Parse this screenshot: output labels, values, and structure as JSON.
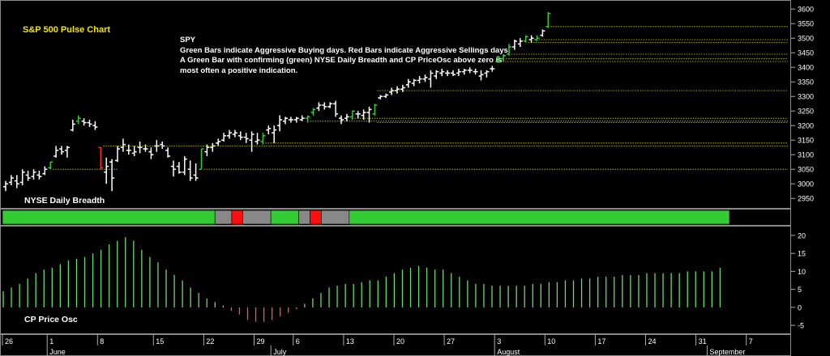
{
  "chart_data": [
    {
      "type": "ohlc",
      "title": "S&P 500 Pulse Chart",
      "symbol": "SPY",
      "description": [
        "Green Bars indicate Aggressive Buying days. Red Bars indicate Aggressive Sellings days.",
        "A Green Bar with confirming (green) NYSE Daily Breadth and CP PriceOsc above zero is",
        "most often a positive indication."
      ],
      "yticks": [
        2950,
        3000,
        3050,
        3100,
        3150,
        3200,
        3250,
        3300,
        3350,
        3400,
        3450,
        3500,
        3550,
        3600
      ],
      "ylim": [
        2920,
        3620
      ],
      "colors": {
        "up": "#33cc33",
        "down": "#ff2a2a",
        "neutral": "#ffffff",
        "grid": "#d6d600"
      },
      "bars": [
        {
          "o": 2990,
          "h": 3010,
          "l": 2975,
          "c": 3000,
          "t": "n"
        },
        {
          "o": 3005,
          "h": 3030,
          "l": 2995,
          "c": 3020,
          "t": "n"
        },
        {
          "o": 3010,
          "h": 3030,
          "l": 2985,
          "c": 3000,
          "t": "n"
        },
        {
          "o": 3005,
          "h": 3050,
          "l": 2995,
          "c": 3040,
          "t": "n"
        },
        {
          "o": 3030,
          "h": 3045,
          "l": 3010,
          "c": 3020,
          "t": "n"
        },
        {
          "o": 3025,
          "h": 3050,
          "l": 3015,
          "c": 3040,
          "t": "n"
        },
        {
          "o": 3030,
          "h": 3045,
          "l": 3015,
          "c": 3025,
          "t": "n"
        },
        {
          "o": 3035,
          "h": 3060,
          "l": 3030,
          "c": 3050,
          "t": "n"
        },
        {
          "o": 3055,
          "h": 3075,
          "l": 3050,
          "c": 3075,
          "t": "g"
        },
        {
          "o": 3095,
          "h": 3130,
          "l": 3090,
          "c": 3115,
          "t": "n"
        },
        {
          "o": 3120,
          "h": 3130,
          "l": 3100,
          "c": 3110,
          "t": "n"
        },
        {
          "o": 3115,
          "h": 3130,
          "l": 3090,
          "c": 3125,
          "t": "n"
        },
        {
          "o": 3185,
          "h": 3220,
          "l": 3180,
          "c": 3205,
          "t": "n"
        },
        {
          "o": 3215,
          "h": 3235,
          "l": 3205,
          "c": 3225,
          "t": "g"
        },
        {
          "o": 3215,
          "h": 3225,
          "l": 3200,
          "c": 3210,
          "t": "n"
        },
        {
          "o": 3210,
          "h": 3220,
          "l": 3195,
          "c": 3205,
          "t": "n"
        },
        {
          "o": 3200,
          "h": 3215,
          "l": 3185,
          "c": 3195,
          "t": "n"
        },
        {
          "o": 3125,
          "h": 3125,
          "l": 3050,
          "c": 3055,
          "t": "r"
        },
        {
          "o": 3040,
          "h": 3090,
          "l": 3000,
          "c": 3060,
          "t": "n"
        },
        {
          "o": 3075,
          "h": 3085,
          "l": 2975,
          "c": 3020,
          "t": "n"
        },
        {
          "o": 3080,
          "h": 3130,
          "l": 3075,
          "c": 3120,
          "t": "n"
        },
        {
          "o": 3125,
          "h": 3155,
          "l": 3110,
          "c": 3135,
          "t": "n"
        },
        {
          "o": 3115,
          "h": 3135,
          "l": 3100,
          "c": 3115,
          "t": "n"
        },
        {
          "o": 3105,
          "h": 3130,
          "l": 3095,
          "c": 3110,
          "t": "n"
        },
        {
          "o": 3125,
          "h": 3145,
          "l": 3105,
          "c": 3125,
          "t": "n"
        },
        {
          "o": 3120,
          "h": 3135,
          "l": 3110,
          "c": 3120,
          "t": "n"
        },
        {
          "o": 3110,
          "h": 3125,
          "l": 3085,
          "c": 3100,
          "t": "n"
        },
        {
          "o": 3130,
          "h": 3150,
          "l": 3110,
          "c": 3130,
          "t": "n"
        },
        {
          "o": 3135,
          "h": 3145,
          "l": 3120,
          "c": 3130,
          "t": "n"
        },
        {
          "o": 3115,
          "h": 3125,
          "l": 3090,
          "c": 3095,
          "t": "n"
        },
        {
          "o": 3060,
          "h": 3080,
          "l": 3025,
          "c": 3050,
          "t": "n"
        },
        {
          "o": 3060,
          "h": 3075,
          "l": 3035,
          "c": 3040,
          "t": "n"
        },
        {
          "o": 3040,
          "h": 3095,
          "l": 3030,
          "c": 3085,
          "t": "n"
        },
        {
          "o": 3050,
          "h": 3080,
          "l": 3010,
          "c": 3020,
          "t": "n"
        },
        {
          "o": 3030,
          "h": 3070,
          "l": 3010,
          "c": 3020,
          "t": "n"
        },
        {
          "o": 3050,
          "h": 3120,
          "l": 3050,
          "c": 3120,
          "t": "g"
        },
        {
          "o": 3110,
          "h": 3135,
          "l": 3095,
          "c": 3125,
          "t": "n"
        },
        {
          "o": 3125,
          "h": 3140,
          "l": 3110,
          "c": 3130,
          "t": "n"
        },
        {
          "o": 3140,
          "h": 3155,
          "l": 3130,
          "c": 3145,
          "t": "n"
        },
        {
          "o": 3150,
          "h": 3175,
          "l": 3145,
          "c": 3165,
          "t": "n"
        },
        {
          "o": 3165,
          "h": 3185,
          "l": 3155,
          "c": 3175,
          "t": "n"
        },
        {
          "o": 3170,
          "h": 3185,
          "l": 3160,
          "c": 3175,
          "t": "n"
        },
        {
          "o": 3165,
          "h": 3180,
          "l": 3150,
          "c": 3160,
          "t": "n"
        },
        {
          "o": 3160,
          "h": 3175,
          "l": 3140,
          "c": 3155,
          "t": "n"
        },
        {
          "o": 3150,
          "h": 3180,
          "l": 3110,
          "c": 3170,
          "t": "n"
        },
        {
          "o": 3145,
          "h": 3175,
          "l": 3135,
          "c": 3150,
          "t": "n"
        },
        {
          "o": 3145,
          "h": 3175,
          "l": 3135,
          "c": 3165,
          "t": "g"
        },
        {
          "o": 3185,
          "h": 3200,
          "l": 3170,
          "c": 3190,
          "t": "n"
        },
        {
          "o": 3175,
          "h": 3200,
          "l": 3140,
          "c": 3185,
          "t": "n"
        },
        {
          "o": 3200,
          "h": 3235,
          "l": 3180,
          "c": 3220,
          "t": "n"
        },
        {
          "o": 3215,
          "h": 3230,
          "l": 3205,
          "c": 3225,
          "t": "n"
        },
        {
          "o": 3220,
          "h": 3230,
          "l": 3210,
          "c": 3220,
          "t": "n"
        },
        {
          "o": 3220,
          "h": 3230,
          "l": 3210,
          "c": 3225,
          "t": "n"
        },
        {
          "o": 3220,
          "h": 3235,
          "l": 3215,
          "c": 3225,
          "t": "n"
        },
        {
          "o": 3225,
          "h": 3235,
          "l": 3210,
          "c": 3230,
          "t": "g"
        },
        {
          "o": 3245,
          "h": 3260,
          "l": 3235,
          "c": 3255,
          "t": "g"
        },
        {
          "o": 3260,
          "h": 3280,
          "l": 3250,
          "c": 3270,
          "t": "n"
        },
        {
          "o": 3270,
          "h": 3280,
          "l": 3255,
          "c": 3265,
          "t": "n"
        },
        {
          "o": 3265,
          "h": 3280,
          "l": 3260,
          "c": 3275,
          "t": "n"
        },
        {
          "o": 3275,
          "h": 3285,
          "l": 3230,
          "c": 3240,
          "t": "n"
        },
        {
          "o": 3225,
          "h": 3235,
          "l": 3205,
          "c": 3220,
          "t": "n"
        },
        {
          "o": 3225,
          "h": 3240,
          "l": 3215,
          "c": 3230,
          "t": "n"
        },
        {
          "o": 3230,
          "h": 3250,
          "l": 3220,
          "c": 3250,
          "t": "g"
        },
        {
          "o": 3240,
          "h": 3250,
          "l": 3225,
          "c": 3240,
          "t": "n"
        },
        {
          "o": 3235,
          "h": 3255,
          "l": 3220,
          "c": 3245,
          "t": "n"
        },
        {
          "o": 3245,
          "h": 3265,
          "l": 3210,
          "c": 3255,
          "t": "n"
        },
        {
          "o": 3240,
          "h": 3275,
          "l": 3235,
          "c": 3270,
          "t": "g"
        },
        {
          "o": 3295,
          "h": 3305,
          "l": 3290,
          "c": 3300,
          "t": "n"
        },
        {
          "o": 3300,
          "h": 3310,
          "l": 3295,
          "c": 3305,
          "t": "n"
        },
        {
          "o": 3315,
          "h": 3330,
          "l": 3305,
          "c": 3320,
          "t": "n"
        },
        {
          "o": 3320,
          "h": 3335,
          "l": 3310,
          "c": 3325,
          "t": "n"
        },
        {
          "o": 3325,
          "h": 3340,
          "l": 3315,
          "c": 3330,
          "t": "n"
        },
        {
          "o": 3340,
          "h": 3360,
          "l": 3330,
          "c": 3350,
          "t": "n"
        },
        {
          "o": 3345,
          "h": 3360,
          "l": 3335,
          "c": 3355,
          "t": "n"
        },
        {
          "o": 3355,
          "h": 3370,
          "l": 3345,
          "c": 3360,
          "t": "n"
        },
        {
          "o": 3360,
          "h": 3375,
          "l": 3350,
          "c": 3365,
          "t": "n"
        },
        {
          "o": 3360,
          "h": 3390,
          "l": 3330,
          "c": 3380,
          "t": "n"
        },
        {
          "o": 3370,
          "h": 3390,
          "l": 3360,
          "c": 3385,
          "t": "n"
        },
        {
          "o": 3380,
          "h": 3395,
          "l": 3370,
          "c": 3385,
          "t": "n"
        },
        {
          "o": 3380,
          "h": 3390,
          "l": 3370,
          "c": 3380,
          "t": "n"
        },
        {
          "o": 3380,
          "h": 3390,
          "l": 3370,
          "c": 3375,
          "t": "n"
        },
        {
          "o": 3380,
          "h": 3395,
          "l": 3370,
          "c": 3385,
          "t": "n"
        },
        {
          "o": 3385,
          "h": 3395,
          "l": 3375,
          "c": 3390,
          "t": "n"
        },
        {
          "o": 3390,
          "h": 3400,
          "l": 3380,
          "c": 3390,
          "t": "n"
        },
        {
          "o": 3385,
          "h": 3395,
          "l": 3375,
          "c": 3385,
          "t": "n"
        },
        {
          "o": 3370,
          "h": 3390,
          "l": 3355,
          "c": 3375,
          "t": "n"
        },
        {
          "o": 3380,
          "h": 3390,
          "l": 3365,
          "c": 3385,
          "t": "n"
        },
        {
          "o": 3395,
          "h": 3405,
          "l": 3385,
          "c": 3395,
          "t": "n"
        },
        {
          "o": 3420,
          "h": 3440,
          "l": 3415,
          "c": 3435,
          "t": "g"
        },
        {
          "o": 3430,
          "h": 3445,
          "l": 3420,
          "c": 3440,
          "t": "g"
        },
        {
          "o": 3445,
          "h": 3480,
          "l": 3440,
          "c": 3470,
          "t": "g"
        },
        {
          "o": 3470,
          "h": 3495,
          "l": 3460,
          "c": 3490,
          "t": "n"
        },
        {
          "o": 3480,
          "h": 3500,
          "l": 3470,
          "c": 3490,
          "t": "n"
        },
        {
          "o": 3490,
          "h": 3510,
          "l": 3485,
          "c": 3505,
          "t": "g"
        },
        {
          "o": 3495,
          "h": 3510,
          "l": 3485,
          "c": 3500,
          "t": "n"
        },
        {
          "o": 3495,
          "h": 3510,
          "l": 3490,
          "c": 3500,
          "t": "g"
        },
        {
          "o": 3510,
          "h": 3530,
          "l": 3505,
          "c": 3525,
          "t": "n"
        },
        {
          "o": 3540,
          "h": 3590,
          "l": 3535,
          "c": 3585,
          "t": "g"
        }
      ],
      "support_levels": [
        {
          "y": 3540,
          "from": 97
        },
        {
          "y": 3495,
          "from": 94
        },
        {
          "y": 3485,
          "from": 93
        },
        {
          "y": 3445,
          "from": 90
        },
        {
          "y": 3430,
          "from": 89
        },
        {
          "y": 3420,
          "from": 88
        },
        {
          "y": 3320,
          "from": 66
        },
        {
          "y": 3225,
          "from": 62
        },
        {
          "y": 3215,
          "from": 54
        },
        {
          "y": 3210,
          "from": 66
        },
        {
          "y": 3140,
          "from": 46
        },
        {
          "y": 3130,
          "from": 17
        },
        {
          "y": 3050,
          "from": 35
        },
        {
          "y": 3050,
          "from": 8,
          "to": 20
        }
      ]
    },
    {
      "type": "status-strip",
      "label": "NYSE Daily Breadth",
      "colors": {
        "green": "#33cc33",
        "gray": "#888888",
        "red": "#ff1010"
      },
      "segments": [
        {
          "s": 0,
          "n": 38,
          "c": "green"
        },
        {
          "s": 38,
          "n": 3,
          "c": "gray"
        },
        {
          "s": 41,
          "n": 2,
          "c": "red"
        },
        {
          "s": 43,
          "n": 5,
          "c": "gray"
        },
        {
          "s": 48,
          "n": 5,
          "c": "green"
        },
        {
          "s": 53,
          "n": 2,
          "c": "gray"
        },
        {
          "s": 55,
          "n": 2,
          "c": "red"
        },
        {
          "s": 57,
          "n": 5,
          "c": "gray"
        },
        {
          "s": 62,
          "n": 68,
          "c": "green"
        }
      ]
    },
    {
      "type": "bar",
      "label": "CP Price Osc",
      "yticks": [
        -5,
        0,
        5,
        10,
        15,
        20
      ],
      "ylim": [
        -7,
        22
      ],
      "colors": {
        "positive": "#66dd66",
        "negative": "#ff5050"
      },
      "values": [
        4.5,
        5.5,
        6.5,
        8,
        9.5,
        10.5,
        11,
        12,
        13,
        13.5,
        14,
        15,
        16,
        17.5,
        18.5,
        19.5,
        18.5,
        16,
        14,
        12.5,
        10.5,
        9,
        7.5,
        5.5,
        4,
        2.5,
        1.5,
        0.5,
        -1,
        -2,
        -3.5,
        -4,
        -4,
        -3.5,
        -2.5,
        -1.5,
        -0.5,
        1,
        2.5,
        4,
        5.5,
        6,
        6.5,
        6.5,
        7,
        7.5,
        7.5,
        8.5,
        9.5,
        10.5,
        11,
        11.5,
        11,
        10.5,
        10.5,
        9.5,
        8.5,
        7.5,
        6.5,
        6.5,
        6,
        6,
        6,
        6,
        6,
        6.5,
        6.5,
        7,
        7,
        7.5,
        7.5,
        8,
        8,
        8.5,
        8.5,
        8.5,
        9,
        9,
        9,
        9.5,
        9.5,
        9.5,
        9.5,
        9.5,
        10,
        10,
        10,
        10,
        11
      ]
    }
  ],
  "x_axis": {
    "day_labels": [
      {
        "bar": 0,
        "t": "26"
      },
      {
        "bar": 8,
        "t": "1"
      },
      {
        "bar": 17,
        "t": "8"
      },
      {
        "bar": 27,
        "t": "15"
      },
      {
        "bar": 36,
        "t": "22"
      },
      {
        "bar": 45,
        "t": "29"
      },
      {
        "bar": 52,
        "t": "6"
      },
      {
        "bar": 61,
        "t": "13"
      },
      {
        "bar": 70,
        "t": "20"
      },
      {
        "bar": 79,
        "t": "27"
      },
      {
        "bar": 88,
        "t": "3"
      },
      {
        "bar": 97,
        "t": "10"
      },
      {
        "bar": 106,
        "t": "17"
      },
      {
        "bar": 115,
        "t": "24"
      },
      {
        "bar": 124,
        "t": "31"
      },
      {
        "bar": 133,
        "t": "7"
      }
    ],
    "month_labels": [
      {
        "bar": 8,
        "t": "June"
      },
      {
        "bar": 48,
        "t": "July"
      },
      {
        "bar": 88,
        "t": "August"
      },
      {
        "bar": 126,
        "t": "September"
      }
    ]
  }
}
